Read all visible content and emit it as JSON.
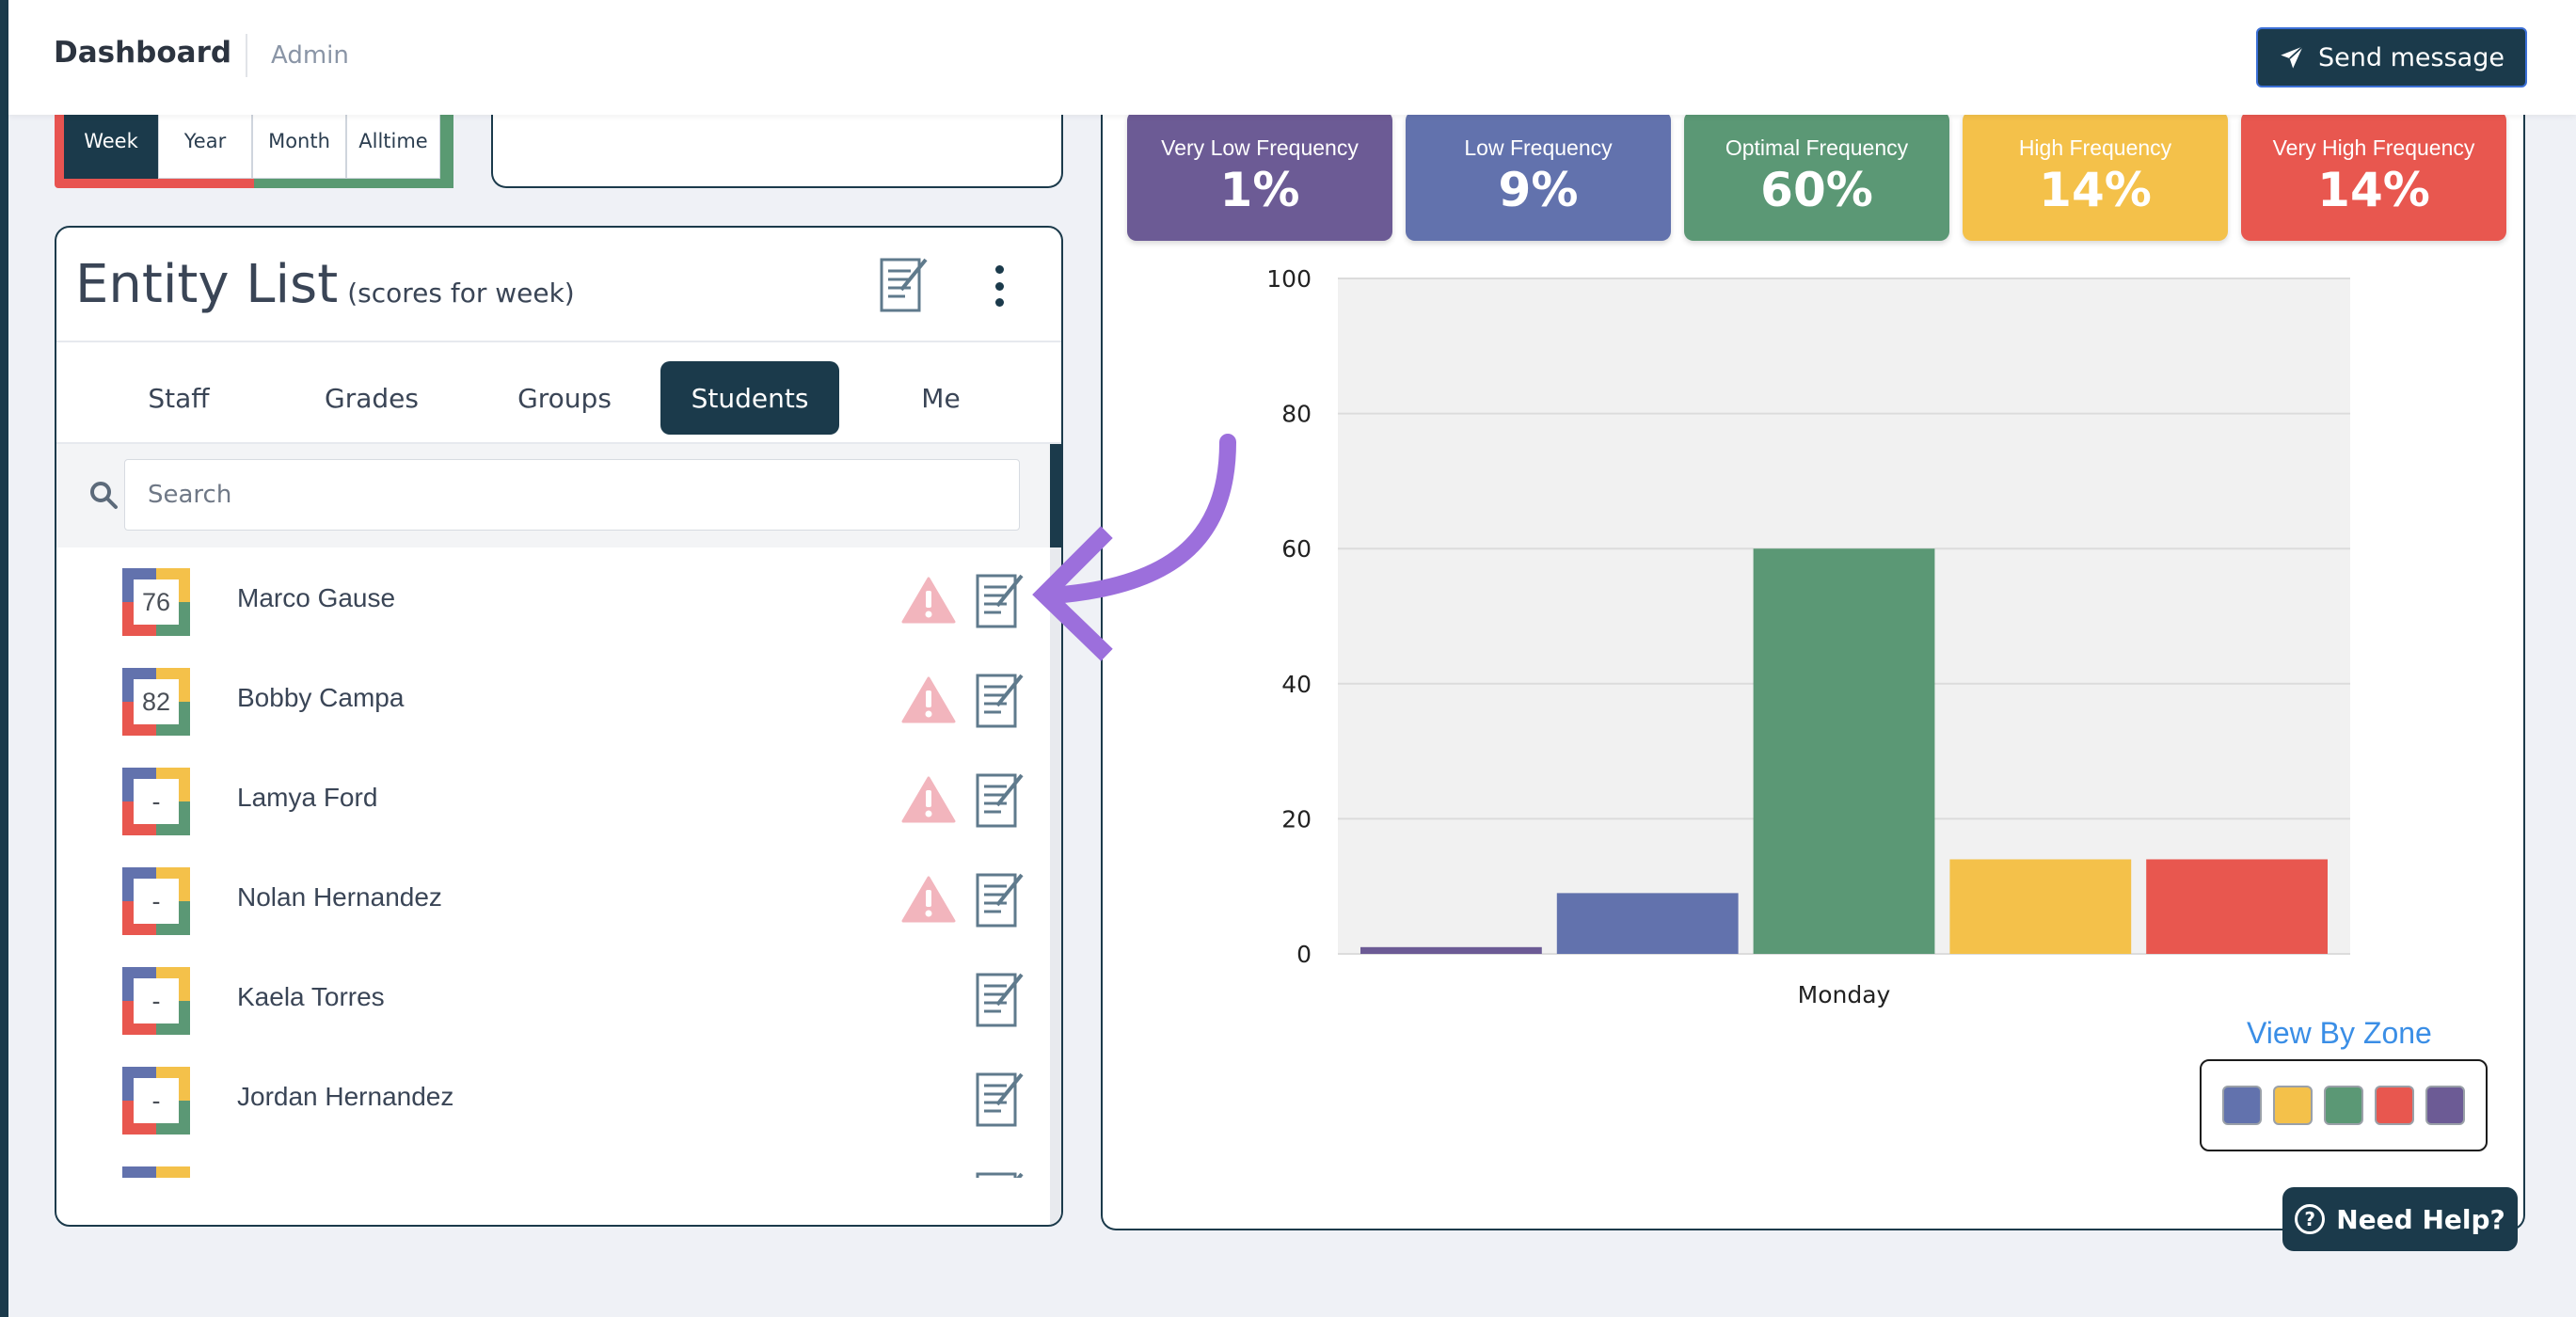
{
  "header": {
    "title": "Dashboard",
    "subtitle": "Admin",
    "send_label": "Send message"
  },
  "timeframe": {
    "buttons": [
      {
        "label": "Week",
        "active": true
      },
      {
        "label": "Year",
        "active": false
      },
      {
        "label": "Month",
        "active": false
      },
      {
        "label": "Alltime",
        "active": false
      }
    ]
  },
  "entity_list": {
    "title": "Entity List",
    "subtitle": "(scores for week)",
    "tabs": [
      {
        "label": "Staff",
        "active": false
      },
      {
        "label": "Grades",
        "active": false
      },
      {
        "label": "Groups",
        "active": false
      },
      {
        "label": "Students",
        "active": true
      },
      {
        "label": "Me",
        "active": false
      }
    ],
    "search_placeholder": "Search",
    "rows": [
      {
        "score": "76",
        "name": "Marco Gause",
        "warning": true
      },
      {
        "score": "82",
        "name": "Bobby Campa",
        "warning": true
      },
      {
        "score": "-",
        "name": "Lamya Ford",
        "warning": true
      },
      {
        "score": "-",
        "name": "Nolan Hernandez",
        "warning": true
      },
      {
        "score": "-",
        "name": "Kaela Torres",
        "warning": false
      },
      {
        "score": "-",
        "name": "Jordan Hernandez",
        "warning": false
      },
      {
        "score": "",
        "name": "",
        "warning": false
      }
    ]
  },
  "zones": [
    {
      "label": "Very Low Frequency",
      "value": "1%",
      "color": "#6c5b95"
    },
    {
      "label": "Low Frequency",
      "value": "9%",
      "color": "#6272ad"
    },
    {
      "label": "Optimal Frequency",
      "value": "60%",
      "color": "#5b9875"
    },
    {
      "label": "High Frequency",
      "value": "14%",
      "color": "#f4c14a"
    },
    {
      "label": "Very High Frequency",
      "value": "14%",
      "color": "#e8574f"
    }
  ],
  "chart_data": {
    "type": "bar",
    "categories": [
      "Monday"
    ],
    "series": [
      {
        "values": [
          1
        ]
      },
      {
        "values": [
          9
        ]
      },
      {
        "values": [
          60
        ]
      },
      {
        "values": [
          14
        ]
      },
      {
        "values": [
          14
        ]
      }
    ],
    "colors": [
      "#6c5b95",
      "#6272ad",
      "#5b9875",
      "#f4c14a",
      "#e8574f"
    ],
    "ylim": [
      0,
      100
    ],
    "yticks": [
      "0",
      "20",
      "40",
      "60",
      "80",
      "100"
    ],
    "grid": true
  },
  "view_by_zone_label": "View By Zone",
  "legend_colors": [
    "#6272ad",
    "#f4c14a",
    "#5b9875",
    "#e8574f",
    "#6c5b95"
  ],
  "help_label": "Need Help?",
  "accent_color": "#1b3a4b"
}
